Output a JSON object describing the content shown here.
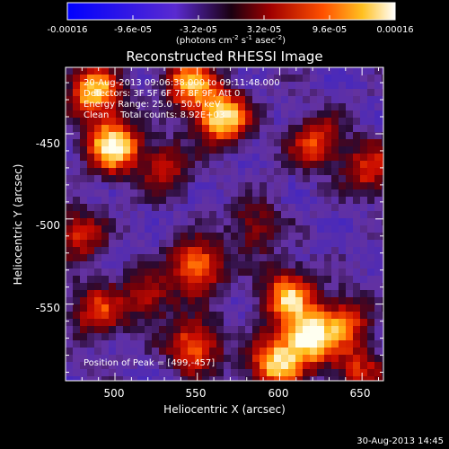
{
  "chart_data": {
    "type": "heatmap",
    "title": "Reconstructed RHESSI Image",
    "colorbar": {
      "ticks": [
        "-0.00016",
        "-9.6e-05",
        "-3.2e-05",
        "3.2e-05",
        "9.6e-05",
        "0.00016"
      ],
      "units_prefix": "(photons cm",
      "units_sup1": "-2",
      "units_mid": " s",
      "units_sup2": "-1",
      "units_mid2": " asec",
      "units_sup3": "-2",
      "units_suffix": ")",
      "range": [
        -0.00016,
        0.00016
      ]
    },
    "xlabel": "Heliocentric X (arcsec)",
    "ylabel": "Heliocentric Y (arcsec)",
    "xlim": [
      470,
      663
    ],
    "ylim": [
      -595,
      -411
    ],
    "xticks": [
      500,
      550,
      600,
      650
    ],
    "yticks": [
      -450,
      -500,
      -550
    ],
    "annotations": [
      "20-Aug-2013 09:06:38.000 to 09:11:48.000",
      "Detectors: 3F 5F 6F 7F 8F 9F, Att 0",
      "Energy Range: 25.0 - 50.0 keV",
      "Clean    Total counts: 8.92E+03"
    ],
    "peak_label": "Position of Peak = [499,-457]",
    "peak": [
      499,
      -457
    ],
    "hotspots": [
      {
        "x": 499,
        "y": -457,
        "value": 1.0
      },
      {
        "x": 487,
        "y": -425,
        "value": 0.85
      },
      {
        "x": 565,
        "y": -440,
        "value": 0.95
      },
      {
        "x": 545,
        "y": -420,
        "value": 0.75
      },
      {
        "x": 622,
        "y": -455,
        "value": 0.6
      },
      {
        "x": 655,
        "y": -470,
        "value": 0.55
      },
      {
        "x": 478,
        "y": -510,
        "value": 0.5
      },
      {
        "x": 490,
        "y": -555,
        "value": 0.55
      },
      {
        "x": 550,
        "y": -528,
        "value": 0.75
      },
      {
        "x": 605,
        "y": -545,
        "value": 0.8
      },
      {
        "x": 618,
        "y": -570,
        "value": 0.95
      },
      {
        "x": 597,
        "y": -585,
        "value": 0.85
      },
      {
        "x": 548,
        "y": -575,
        "value": 0.7
      },
      {
        "x": 640,
        "y": -560,
        "value": 0.55
      },
      {
        "x": 648,
        "y": -590,
        "value": 0.5
      },
      {
        "x": 530,
        "y": -470,
        "value": 0.45
      },
      {
        "x": 585,
        "y": -505,
        "value": 0.4
      },
      {
        "x": 520,
        "y": -545,
        "value": 0.45
      }
    ]
  },
  "footer_date": "30-Aug-2013 14:45"
}
